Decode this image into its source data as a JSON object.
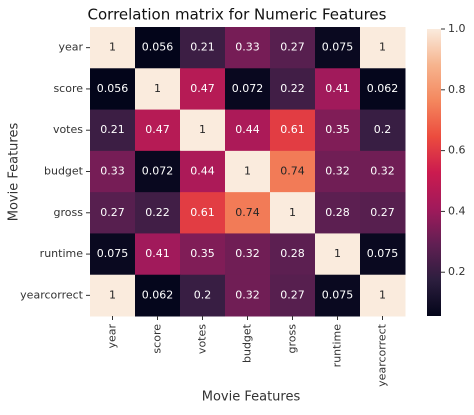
{
  "chart_data": {
    "type": "heatmap",
    "title": "Correlation matrix for Numeric Features",
    "x_label": "Movie Features",
    "y_label": "Movie Features",
    "x_categories": [
      "year",
      "score",
      "votes",
      "budget",
      "gross",
      "runtime",
      "yearcorrect"
    ],
    "y_categories": [
      "year",
      "score",
      "votes",
      "budget",
      "gross",
      "runtime",
      "yearcorrect"
    ],
    "values": [
      [
        1,
        0.056,
        0.21,
        0.33,
        0.27,
        0.075,
        1
      ],
      [
        0.056,
        1,
        0.47,
        0.072,
        0.22,
        0.41,
        0.062
      ],
      [
        0.21,
        0.47,
        1,
        0.44,
        0.61,
        0.35,
        0.2
      ],
      [
        0.33,
        0.072,
        0.44,
        1,
        0.74,
        0.32,
        0.32
      ],
      [
        0.27,
        0.22,
        0.61,
        0.74,
        1,
        0.28,
        0.27
      ],
      [
        0.075,
        0.41,
        0.35,
        0.32,
        0.28,
        1,
        0.075
      ],
      [
        1,
        0.062,
        0.2,
        0.32,
        0.27,
        0.075,
        1
      ]
    ],
    "zlim": [
      0.056,
      1
    ],
    "colorbar_ticks": [
      0.2,
      0.4,
      0.6,
      0.8,
      {
        "value": 1,
        "label": "1.0"
      }
    ],
    "colormap": [
      "#03051a",
      "#2c1e3e",
      "#611f53",
      "#a11a5b",
      "#cb1b4f",
      "#ec4c3e",
      "#f4875e",
      "#f6b48e",
      "#faebdd"
    ]
  }
}
